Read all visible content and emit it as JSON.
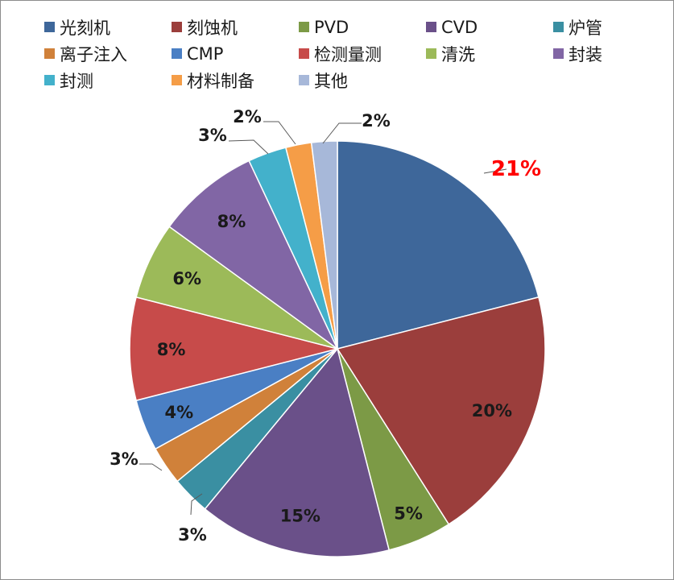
{
  "chart_data": {
    "type": "pie",
    "title": "",
    "legend_position": "top",
    "highlight_color": "#ff0000",
    "slices": [
      {
        "name": "光刻机",
        "value": 21,
        "label": "21%",
        "color": "#3e679a"
      },
      {
        "name": "刻蚀机",
        "value": 20,
        "label": "20%",
        "color": "#9b3e3c"
      },
      {
        "name": "PVD",
        "value": 5,
        "label": "5%",
        "color": "#7c9a46"
      },
      {
        "name": "CVD",
        "value": 15,
        "label": "15%",
        "color": "#6a5089"
      },
      {
        "name": "炉管",
        "value": 3,
        "label": "3%",
        "color": "#3a8fa2"
      },
      {
        "name": "离子注入",
        "value": 3,
        "label": "3%",
        "color": "#d0813a"
      },
      {
        "name": "CMP",
        "value": 4,
        "label": "4%",
        "color": "#4a7fc4"
      },
      {
        "name": "检测量测",
        "value": 8,
        "label": "8%",
        "color": "#c74b4a"
      },
      {
        "name": "清洗",
        "value": 6,
        "label": "6%",
        "color": "#9cba59"
      },
      {
        "name": "封装",
        "value": 8,
        "label": "8%",
        "color": "#8166a5"
      },
      {
        "name": "封测",
        "value": 3,
        "label": "3%",
        "color": "#43b1cb"
      },
      {
        "name": "材料制备",
        "value": 2,
        "label": "2%",
        "color": "#f59d47"
      },
      {
        "name": "其他",
        "value": 2,
        "label": "2%",
        "color": "#a7b8d9"
      }
    ]
  }
}
